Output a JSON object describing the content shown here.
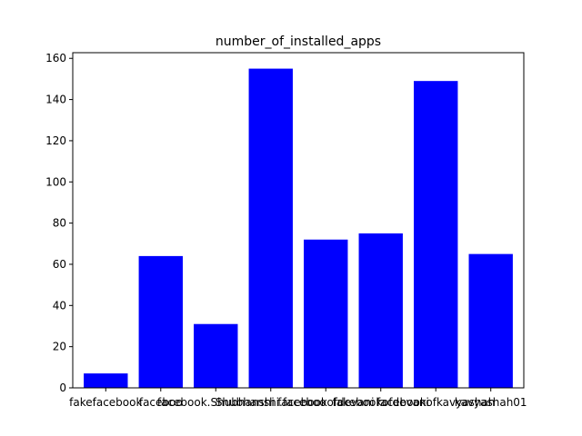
{
  "chart_data": {
    "type": "bar",
    "title": "number_of_installed_apps",
    "xlabel": "",
    "ylabel": "",
    "categories": [
      "fakefacebook",
      "faceboo",
      "facebook.Shubhanshi",
      "Shubhanshi.faceboo",
      "facebookofdevani",
      "fakebookofdevani",
      "facebookofkavyashah",
      "kavyashah01"
    ],
    "values": [
      7,
      64,
      31,
      155,
      72,
      75,
      149,
      65
    ],
    "ylim": [
      0,
      162.75
    ],
    "yticks": [
      0,
      20,
      40,
      60,
      80,
      100,
      120,
      140,
      160
    ],
    "bar_color": "#0000ff",
    "grid": false,
    "legend": "none"
  }
}
